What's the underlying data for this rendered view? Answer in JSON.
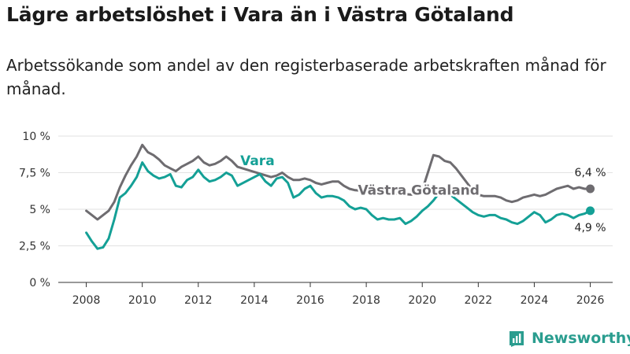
{
  "header": {
    "title": "Lägre arbetslöshet i Vara än i Västra Götaland",
    "subtitle": "Arbetssökande som andel av den registerbaserade arbetskraften månad för månad."
  },
  "brand": {
    "name": "Newsworthy"
  },
  "colors": {
    "vara": "#14a096",
    "vastra": "#6e6c70",
    "grid": "#e2e2e2",
    "axis": "#333333"
  },
  "chart_data": {
    "type": "line",
    "title": "Lägre arbetslöshet i Vara än i Västra Götaland",
    "xlabel": "",
    "ylabel": "",
    "xlim": [
      2007,
      2026.8
    ],
    "ylim": [
      0,
      10
    ],
    "x_ticks": [
      2008,
      2010,
      2012,
      2014,
      2016,
      2018,
      2020,
      2022,
      2024,
      2026
    ],
    "x_tick_labels": [
      "2008",
      "2010",
      "2012",
      "2014",
      "2016",
      "2018",
      "2020",
      "2022",
      "2024",
      "2026"
    ],
    "y_ticks": [
      0,
      2.5,
      5,
      7.5,
      10
    ],
    "y_tick_labels": [
      "0 %",
      "2,5 %",
      "5 %",
      "7,5 %",
      "10 %"
    ],
    "grid": true,
    "series": [
      {
        "name": "Västra Götaland",
        "label": "Västra Götaland",
        "color": "#6e6c70",
        "end_label": "6,4 %",
        "points": [
          [
            2008.0,
            4.9
          ],
          [
            2008.2,
            4.6
          ],
          [
            2008.4,
            4.3
          ],
          [
            2008.6,
            4.6
          ],
          [
            2008.8,
            4.9
          ],
          [
            2009.0,
            5.5
          ],
          [
            2009.2,
            6.5
          ],
          [
            2009.4,
            7.3
          ],
          [
            2009.6,
            8.0
          ],
          [
            2009.8,
            8.6
          ],
          [
            2010.0,
            9.4
          ],
          [
            2010.2,
            8.9
          ],
          [
            2010.4,
            8.7
          ],
          [
            2010.6,
            8.4
          ],
          [
            2010.8,
            8.0
          ],
          [
            2011.0,
            7.8
          ],
          [
            2011.2,
            7.6
          ],
          [
            2011.4,
            7.9
          ],
          [
            2011.6,
            8.1
          ],
          [
            2011.8,
            8.3
          ],
          [
            2012.0,
            8.6
          ],
          [
            2012.2,
            8.2
          ],
          [
            2012.4,
            8.0
          ],
          [
            2012.6,
            8.1
          ],
          [
            2012.8,
            8.3
          ],
          [
            2013.0,
            8.6
          ],
          [
            2013.2,
            8.3
          ],
          [
            2013.4,
            7.9
          ],
          [
            2014.6,
            7.2
          ],
          [
            2014.8,
            7.3
          ],
          [
            2015.0,
            7.5
          ],
          [
            2015.2,
            7.2
          ],
          [
            2015.4,
            7.0
          ],
          [
            2015.6,
            7.0
          ],
          [
            2015.8,
            7.1
          ],
          [
            2016.0,
            7.0
          ],
          [
            2016.2,
            6.8
          ],
          [
            2016.4,
            6.7
          ],
          [
            2016.6,
            6.8
          ],
          [
            2016.8,
            6.9
          ],
          [
            2017.0,
            6.9
          ],
          [
            2017.2,
            6.6
          ],
          [
            2017.4,
            6.4
          ],
          [
            2017.6,
            6.3
          ],
          [
            2019.6,
            6.0
          ],
          [
            2019.8,
            6.1
          ],
          [
            2020.0,
            6.3
          ],
          [
            2020.2,
            7.5
          ],
          [
            2020.4,
            8.7
          ],
          [
            2020.6,
            8.6
          ],
          [
            2020.8,
            8.3
          ],
          [
            2021.0,
            8.2
          ],
          [
            2021.2,
            7.8
          ],
          [
            2021.4,
            7.3
          ],
          [
            2021.6,
            6.8
          ],
          [
            2021.8,
            6.3
          ],
          [
            2022.0,
            6.0
          ],
          [
            2022.2,
            5.9
          ],
          [
            2022.4,
            5.9
          ],
          [
            2022.6,
            5.9
          ],
          [
            2022.8,
            5.8
          ],
          [
            2023.0,
            5.6
          ],
          [
            2023.2,
            5.5
          ],
          [
            2023.4,
            5.6
          ],
          [
            2023.6,
            5.8
          ],
          [
            2023.8,
            5.9
          ],
          [
            2024.0,
            6.0
          ],
          [
            2024.2,
            5.9
          ],
          [
            2024.4,
            6.0
          ],
          [
            2024.6,
            6.2
          ],
          [
            2024.8,
            6.4
          ],
          [
            2025.0,
            6.5
          ],
          [
            2025.2,
            6.6
          ],
          [
            2025.4,
            6.4
          ],
          [
            2025.6,
            6.5
          ],
          [
            2025.8,
            6.4
          ],
          [
            2026.0,
            6.4
          ]
        ]
      },
      {
        "name": "Vara",
        "label": "Vara",
        "color": "#14a096",
        "end_label": "4,9 %",
        "points": [
          [
            2008.0,
            3.4
          ],
          [
            2008.2,
            2.8
          ],
          [
            2008.4,
            2.3
          ],
          [
            2008.6,
            2.4
          ],
          [
            2008.8,
            3.0
          ],
          [
            2009.0,
            4.3
          ],
          [
            2009.2,
            5.8
          ],
          [
            2009.4,
            6.1
          ],
          [
            2009.6,
            6.6
          ],
          [
            2009.8,
            7.2
          ],
          [
            2010.0,
            8.2
          ],
          [
            2010.2,
            7.6
          ],
          [
            2010.4,
            7.3
          ],
          [
            2010.6,
            7.1
          ],
          [
            2010.8,
            7.2
          ],
          [
            2011.0,
            7.4
          ],
          [
            2011.2,
            6.6
          ],
          [
            2011.4,
            6.5
          ],
          [
            2011.6,
            7.0
          ],
          [
            2011.8,
            7.2
          ],
          [
            2012.0,
            7.7
          ],
          [
            2012.2,
            7.2
          ],
          [
            2012.4,
            6.9
          ],
          [
            2012.6,
            7.0
          ],
          [
            2012.8,
            7.2
          ],
          [
            2013.0,
            7.5
          ],
          [
            2013.2,
            7.3
          ],
          [
            2013.4,
            6.6
          ],
          [
            2014.2,
            7.4
          ],
          [
            2014.4,
            6.9
          ],
          [
            2014.6,
            6.6
          ],
          [
            2014.8,
            7.1
          ],
          [
            2015.0,
            7.2
          ],
          [
            2015.2,
            6.8
          ],
          [
            2015.4,
            5.8
          ],
          [
            2015.6,
            6.0
          ],
          [
            2015.8,
            6.4
          ],
          [
            2016.0,
            6.6
          ],
          [
            2016.2,
            6.1
          ],
          [
            2016.4,
            5.8
          ],
          [
            2016.6,
            5.9
          ],
          [
            2016.8,
            5.9
          ],
          [
            2017.0,
            5.8
          ],
          [
            2017.2,
            5.6
          ],
          [
            2017.4,
            5.2
          ],
          [
            2017.6,
            5.0
          ],
          [
            2017.8,
            5.1
          ],
          [
            2018.0,
            5.0
          ],
          [
            2018.2,
            4.6
          ],
          [
            2018.4,
            4.3
          ],
          [
            2018.6,
            4.4
          ],
          [
            2018.8,
            4.3
          ],
          [
            2019.0,
            4.3
          ],
          [
            2019.2,
            4.4
          ],
          [
            2019.4,
            4.0
          ],
          [
            2019.6,
            4.2
          ],
          [
            2019.8,
            4.5
          ],
          [
            2020.0,
            4.9
          ],
          [
            2020.2,
            5.2
          ],
          [
            2020.4,
            5.6
          ],
          [
            2020.6,
            6.1
          ],
          [
            2020.8,
            6.0
          ],
          [
            2021.0,
            6.0
          ],
          [
            2021.2,
            5.7
          ],
          [
            2021.4,
            5.4
          ],
          [
            2021.6,
            5.1
          ],
          [
            2021.8,
            4.8
          ],
          [
            2022.0,
            4.6
          ],
          [
            2022.2,
            4.5
          ],
          [
            2022.4,
            4.6
          ],
          [
            2022.6,
            4.6
          ],
          [
            2022.8,
            4.4
          ],
          [
            2023.0,
            4.3
          ],
          [
            2023.2,
            4.1
          ],
          [
            2023.4,
            4.0
          ],
          [
            2023.6,
            4.2
          ],
          [
            2023.8,
            4.5
          ],
          [
            2024.0,
            4.8
          ],
          [
            2024.2,
            4.6
          ],
          [
            2024.4,
            4.1
          ],
          [
            2024.6,
            4.3
          ],
          [
            2024.8,
            4.6
          ],
          [
            2025.0,
            4.7
          ],
          [
            2025.2,
            4.6
          ],
          [
            2025.4,
            4.4
          ],
          [
            2025.6,
            4.6
          ],
          [
            2025.8,
            4.7
          ],
          [
            2026.0,
            4.9
          ]
        ]
      }
    ]
  }
}
